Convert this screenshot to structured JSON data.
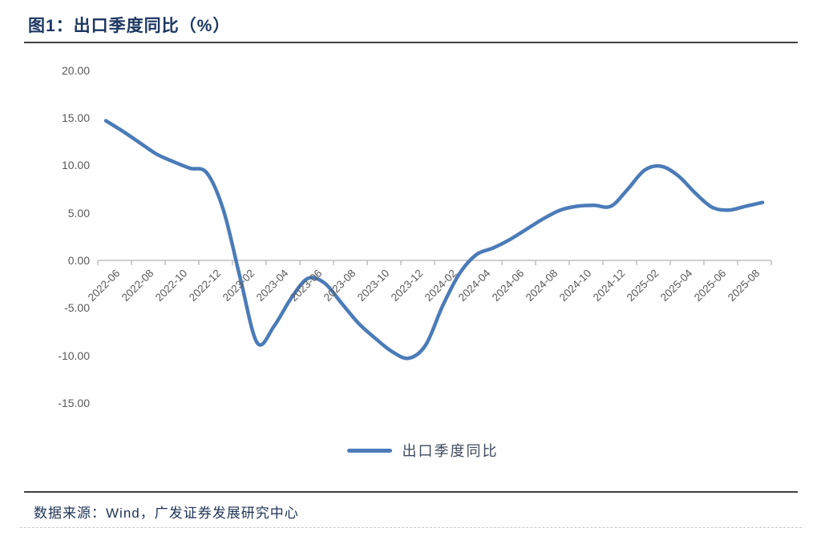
{
  "header": {
    "title": "图1：出口季度同比（%）"
  },
  "legend": {
    "label": "出口季度同比"
  },
  "footer": {
    "source": "数据来源：Wind，广发证券发展研究中心"
  },
  "colors": {
    "line": "#4b7bb8",
    "title_text": "#1c3761",
    "axis_text": "#595959",
    "axis_line": "#bfbfbf",
    "rule_dark": "#404040",
    "rule_dashed": "#c9c9c9",
    "legend_text": "#3e4a5e",
    "source_text": "#1f3356"
  },
  "chart_data": {
    "type": "line",
    "title": "出口季度同比（%）",
    "ylabel": "",
    "xlabel": "",
    "ylim": [
      -15,
      20
    ],
    "grid": false,
    "legend_position": "bottom",
    "y_ticks": [
      "20.00",
      "15.00",
      "10.00",
      "5.00",
      "0.00",
      "-5.00",
      "-10.00",
      "-15.00"
    ],
    "x_tick_labels": [
      "2022-06",
      "2022-08",
      "2022-10",
      "2022-12",
      "2023-02",
      "2023-04",
      "2023-06",
      "2023-08",
      "2023-10",
      "2023-12",
      "2024-02",
      "2024-04",
      "2024-06",
      "2024-08",
      "2024-10",
      "2024-12",
      "2025-02",
      "2025-04",
      "2025-06",
      "2025-08"
    ],
    "x": [
      "2022-06",
      "2022-07",
      "2022-08",
      "2022-09",
      "2022-10",
      "2022-11",
      "2022-12",
      "2023-01",
      "2023-02",
      "2023-03",
      "2023-04",
      "2023-05",
      "2023-06",
      "2023-07",
      "2023-08",
      "2023-09",
      "2023-10",
      "2023-11",
      "2023-12",
      "2024-01",
      "2024-02",
      "2024-03",
      "2024-04",
      "2024-05",
      "2024-06",
      "2024-07",
      "2024-08",
      "2024-09",
      "2024-10",
      "2024-11",
      "2024-12",
      "2025-01",
      "2025-02",
      "2025-03",
      "2025-04",
      "2025-05",
      "2025-06",
      "2025-07",
      "2025-08",
      "2025-09"
    ],
    "series": [
      {
        "name": "出口季度同比",
        "values": [
          14.7,
          13.6,
          12.4,
          11.2,
          10.4,
          9.7,
          9.2,
          5.2,
          -2.0,
          -8.7,
          -6.9,
          -4.0,
          -1.9,
          -2.4,
          -4.5,
          -6.6,
          -8.2,
          -9.6,
          -10.3,
          -8.9,
          -4.8,
          -1.4,
          0.6,
          1.3,
          2.2,
          3.3,
          4.4,
          5.3,
          5.7,
          5.8,
          5.7,
          7.5,
          9.5,
          9.9,
          8.9,
          7.1,
          5.6,
          5.3,
          5.7,
          6.1
        ]
      }
    ]
  }
}
